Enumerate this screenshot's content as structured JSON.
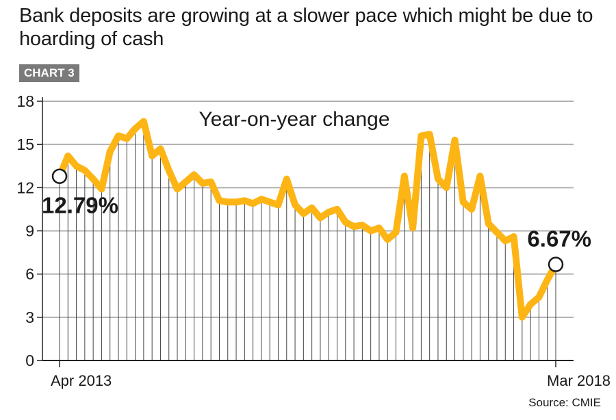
{
  "title": "Bank deposits are growing at a slower pace which might be due to hoarding of cash",
  "badge": "CHART 3",
  "source": "Source: CMIE",
  "colors": {
    "line": "#FDB515",
    "grid": "#b0b0b0",
    "drop": "#444444",
    "badge": "#7a7a7a"
  },
  "chart_data": {
    "type": "line",
    "annotation": "Year-on-year change",
    "x_start_label": "Apr 2013",
    "x_end_label": "Mar 2018",
    "ylim": [
      0,
      18
    ],
    "yticks": [
      "0",
      "3",
      "6",
      "9",
      "12",
      "15",
      "18"
    ],
    "grid": true,
    "callouts": [
      {
        "index": 0,
        "label": "12.79%"
      },
      {
        "index": 59,
        "label": "6.67%"
      }
    ],
    "values": [
      12.79,
      14.2,
      13.5,
      13.2,
      12.6,
      11.9,
      14.5,
      15.6,
      15.4,
      16.1,
      16.6,
      14.2,
      14.7,
      13.2,
      11.9,
      12.4,
      12.9,
      12.3,
      12.4,
      11.1,
      11.0,
      11.0,
      11.1,
      10.9,
      11.2,
      11.0,
      10.8,
      12.6,
      10.8,
      10.2,
      10.6,
      9.9,
      10.3,
      10.5,
      9.6,
      9.3,
      9.4,
      9.0,
      9.2,
      8.4,
      8.9,
      12.8,
      9.2,
      15.6,
      15.7,
      12.6,
      12.0,
      15.3,
      11.0,
      10.5,
      12.8,
      9.5,
      8.9,
      8.3,
      8.6,
      3.0,
      3.9,
      4.4,
      5.6,
      6.67
    ]
  }
}
